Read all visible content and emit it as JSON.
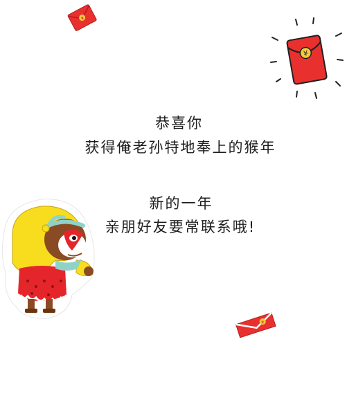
{
  "greeting": {
    "line1": "恭喜你",
    "line2": "获得俺老孙特地奉上的猴年",
    "line3": "新的一年",
    "line4": "亲朋好友要常联系哦!"
  },
  "symbols": {
    "yuan": "¥"
  },
  "colors": {
    "envelope_red": "#e8312f",
    "envelope_dark": "#b51b1b",
    "coin_gold": "#f5c93b",
    "monkey_yellow": "#f8dd1e",
    "monkey_brown": "#8a4a24",
    "face_red": "#e4262b",
    "headband_teal": "#8fd3c8"
  },
  "icons": [
    "red-envelope-icon",
    "red-envelope-seal-icon",
    "monkey-king-sticker"
  ]
}
